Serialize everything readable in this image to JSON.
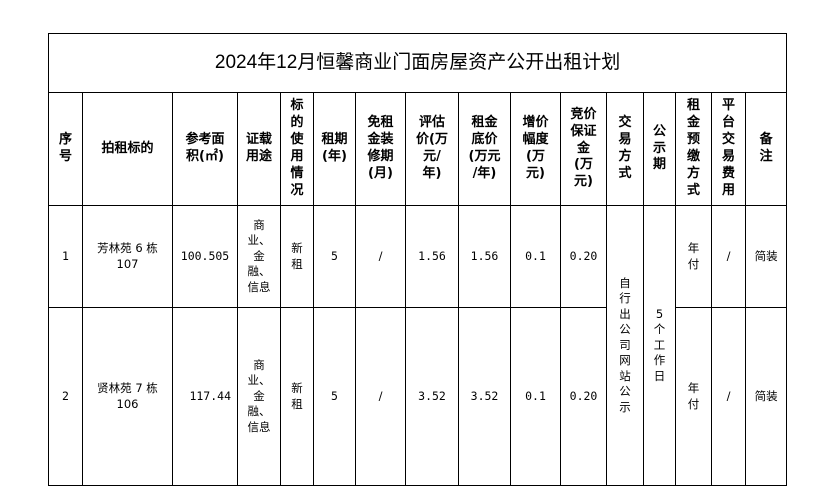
{
  "title": "2024年12月恒馨商业门面房屋资产公开出租计划",
  "headers": [
    "序\n号",
    "拍租标的",
    "参考面\n积(㎡)",
    "证载\n用途",
    "标\n的\n使\n用\n情\n况",
    "租期\n(年)",
    "免租\n金装\n修期\n(月)",
    "评估\n价(万\n元/\n年)",
    "租金\n底价\n(万元\n/年)",
    "增价\n幅度\n(万\n元)",
    "竞价\n保证\n金\n(万\n元)",
    "交\n易\n方\n式",
    "公\n示\n期",
    "租\n金\n预\n缴\n方\n式",
    "平\n台\n交\n易\n费\n用",
    "备\n注"
  ],
  "rows": [
    {
      "no": "1",
      "target": "芳林苑 6 栋\n107",
      "area": "100.505",
      "usage": "商\n业、\n金\n融、\n信息",
      "status": "新\n租",
      "term": "5",
      "free_months": "/",
      "appraisal": "1.56",
      "reserve": "1.56",
      "increment": "0.1",
      "deposit": "0.20",
      "payment": "年\n付",
      "platform_fee": "/",
      "remark": "简装"
    },
    {
      "no": "2",
      "target": "贤林苑 7 栋\n106",
      "area": "117.44",
      "usage": "商\n业、\n金\n融、\n信息",
      "status": "新\n租",
      "term": "5",
      "free_months": "/",
      "appraisal": "3.52",
      "reserve": "3.52",
      "increment": "0.1",
      "deposit": "0.20",
      "payment": "年\n付",
      "platform_fee": "/",
      "remark": "简装"
    }
  ],
  "trade_method": "自\n行\n出\n公\n司\n网\n站\n公\n示",
  "notice_period": "5\n个\n工\n作\n日"
}
